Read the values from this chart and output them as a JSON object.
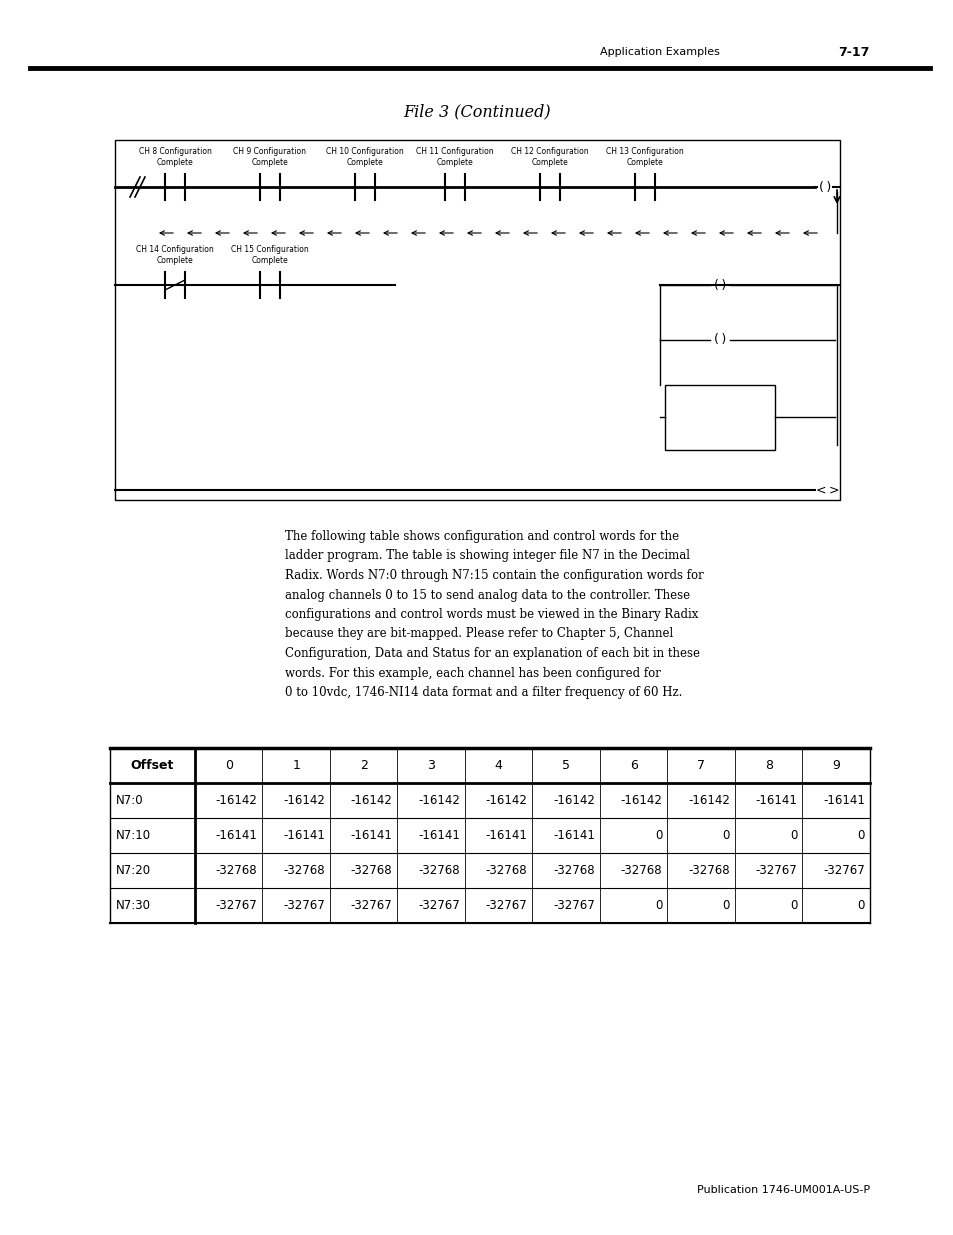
{
  "page_header_text": "Application Examples",
  "page_header_number": "7-17",
  "title": "File 3 (Continued)",
  "paragraph_lines": [
    "The following table shows configuration and control words for the",
    "ladder program. The table is showing integer file N7 in the Decimal",
    "Radix. Words N7:0 through N7:15 contain the configuration words for",
    "analog channels 0 to 15 to send analog data to the controller. These",
    "configurations and control words must be viewed in the Binary Radix",
    "because they are bit-mapped. Please refer to Chapter 5, Channel",
    "Configuration, Data and Status for an explanation of each bit in these",
    "words. For this example, each channel has been configured for",
    "0 to 10vdc, 1746-NI14 data format and a filter frequency of 60 Hz."
  ],
  "footer_text": "Publication 1746-UM001A-US-P",
  "table_headers": [
    "Offset",
    "0",
    "1",
    "2",
    "3",
    "4",
    "5",
    "6",
    "7",
    "8",
    "9"
  ],
  "table_rows": [
    [
      "N7:0",
      "-16142",
      "-16142",
      "-16142",
      "-16142",
      "-16142",
      "-16142",
      "-16142",
      "-16142",
      "-16141",
      "-16141"
    ],
    [
      "N7:10",
      "-16141",
      "-16141",
      "-16141",
      "-16141",
      "-16141",
      "-16141",
      "0",
      "0",
      "0",
      "0"
    ],
    [
      "N7:20",
      "-32768",
      "-32768",
      "-32768",
      "-32768",
      "-32768",
      "-32768",
      "-32768",
      "-32768",
      "-32767",
      "-32767"
    ],
    [
      "N7:30",
      "-32767",
      "-32767",
      "-32767",
      "-32767",
      "-32767",
      "-32767",
      "0",
      "0",
      "0",
      "0"
    ]
  ],
  "rung1_contact_labels": [
    "CH 8 Configuration\nComplete",
    "CH 9 Configuration\nComplete",
    "CH 10 Configuration\nComplete",
    "CH 11 Configuration\nComplete",
    "CH 12 Configuration\nComplete",
    "CH 13 Configuration\nComplete"
  ],
  "rung2_contact_labels": [
    "CH 14 Configuration\nComplete",
    "CH 15 Configuration\nComplete"
  ],
  "bg_color": "#ffffff"
}
